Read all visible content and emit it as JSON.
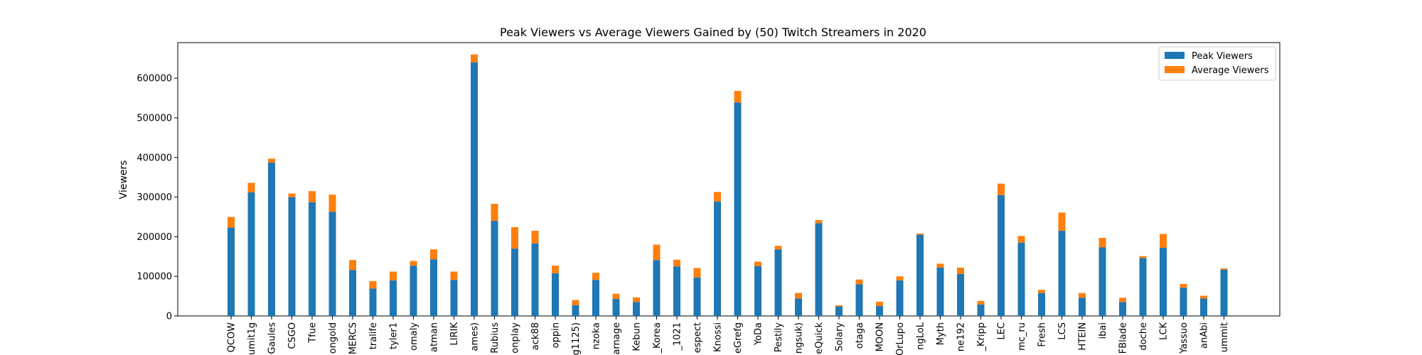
{
  "chart_data": {
    "type": "bar",
    "stacked": true,
    "title": "Peak Viewers vs Average Viewers Gained by (50) Twitch Streamers in 2020",
    "xlabel": "",
    "ylabel": "Viewers",
    "ylim": [
      0,
      690000
    ],
    "yticks": [
      0,
      100000,
      200000,
      300000,
      400000,
      500000,
      600000
    ],
    "ytick_labels": [
      "0",
      "100000",
      "200000",
      "300000",
      "400000",
      "500000",
      "600000"
    ],
    "grid": false,
    "legend_position": "top-right",
    "categories": [
      "QCOW",
      "umit1g",
      "Gaules",
      "CSGO",
      "Tfue",
      "ongold",
      "MERCS",
      "tralife",
      "tyler1",
      "omaly",
      "atman",
      "LIRIK",
      "ames)",
      "Rubius",
      "onplay",
      "ack88",
      "oppin",
      "g1125)",
      "nzoka",
      "arnage",
      "Kebun",
      "_Korea",
      "_1021",
      "espect",
      "Knossi",
      "eGrefg",
      "YoDa",
      "Pestily",
      "ngsuk)",
      "eQuick",
      "Solary",
      "otaga",
      "MOON",
      "OrLupo",
      "ngLoL",
      "Myth",
      "ne192",
      "_Kripp",
      "LEC",
      "mc_ru",
      "Fresh",
      "LCS",
      "HTEIN",
      "ibai",
      "FBlade",
      "doche",
      "LCK",
      "Yassuo",
      "anAbi",
      "ummit"
    ],
    "series": [
      {
        "name": "Peak Viewers",
        "color": "#1f77b4",
        "values": [
          223000,
          312000,
          387000,
          300000,
          287000,
          263000,
          116000,
          69000,
          90000,
          127000,
          143000,
          91000,
          640000,
          240000,
          170000,
          183000,
          108000,
          27000,
          91000,
          43000,
          35000,
          141000,
          125000,
          97000,
          289000,
          539000,
          126000,
          168000,
          44000,
          234000,
          24000,
          80000,
          25000,
          90000,
          205000,
          122000,
          106000,
          29000,
          305000,
          185000,
          58000,
          215000,
          46000,
          173000,
          35000,
          146000,
          172000,
          71000,
          44000,
          117000
        ]
      },
      {
        "name": "Average Viewers",
        "color": "#ff7f0e",
        "values": [
          27000,
          24000,
          10000,
          9000,
          28000,
          43000,
          25000,
          19000,
          22000,
          12000,
          25000,
          21000,
          20000,
          43000,
          54000,
          32000,
          19000,
          13000,
          18000,
          13000,
          12000,
          39000,
          17000,
          24000,
          24000,
          29000,
          11000,
          9000,
          14000,
          8000,
          3000,
          12000,
          11000,
          10000,
          3000,
          10000,
          16000,
          9000,
          29000,
          17000,
          8000,
          46000,
          12000,
          24000,
          11000,
          5000,
          35000,
          10000,
          7000,
          3000
        ]
      }
    ]
  }
}
